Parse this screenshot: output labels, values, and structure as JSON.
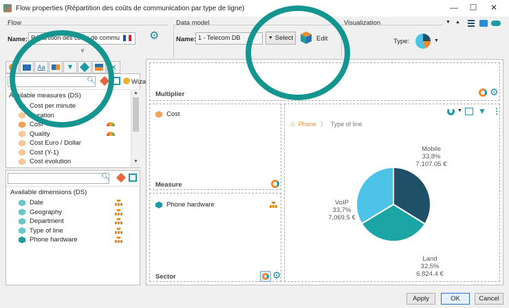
{
  "window": {
    "title": "Flow properties (Répartition des coûts de communication par type de ligne)",
    "minimize": "—",
    "maximize": "☐",
    "close": "✕"
  },
  "flow": {
    "group_label": "Flow",
    "name_label": "Name:",
    "name_value": "Répartition des coûts de commu",
    "collapse_glyph": "»"
  },
  "data_model": {
    "group_label": "Data model",
    "name_label": "Name:",
    "name_value": "1 - Telecom DB",
    "select_label": "Select",
    "edit_label": "Edit"
  },
  "visualization": {
    "group_label": "Visualization",
    "type_label": "Type:"
  },
  "measures": {
    "wizard_label": "Wizard",
    "header": "Available measures (DS)",
    "items": [
      {
        "label": "Cost per minute",
        "icon": "hex-orange-light"
      },
      {
        "label": "Duration",
        "icon": "hex-orange-light"
      },
      {
        "label": "Cost",
        "icon": "hex-orange",
        "badge": true
      },
      {
        "label": "Quality",
        "icon": "hex-orange-light",
        "badge": true
      },
      {
        "label": "Cost Euro / Dollar",
        "icon": "hex-orange-light"
      },
      {
        "label": "Cost (Y-1)",
        "icon": "hex-orange-light"
      },
      {
        "label": "Cost evolution",
        "icon": "hex-orange-light"
      }
    ]
  },
  "dimensions": {
    "header": "Available dimensions (DS)",
    "items": [
      {
        "label": "Date",
        "icon": "hex-teal-light"
      },
      {
        "label": "Geography",
        "icon": "hex-teal-light"
      },
      {
        "label": "Department",
        "icon": "hex-teal-light"
      },
      {
        "label": "Type of line",
        "icon": "hex-teal-light"
      },
      {
        "label": "Phone hardware",
        "icon": "hex-teal"
      }
    ]
  },
  "design": {
    "multiplier_label": "Multiplier",
    "measure_label": "Measure",
    "measure_item": "Cost",
    "sector_label": "Sector",
    "sector_item": "Phone hardware",
    "breadcrumb_root": "Phone",
    "breadcrumb_sep": "〉",
    "breadcrumb_leaf": "Type of line"
  },
  "chart_data": {
    "type": "pie",
    "slices": [
      {
        "name": "Mobile",
        "percent": "33,8%",
        "value": 7107.05,
        "value_label": "7,107.05 €",
        "color": "#1f5068"
      },
      {
        "name": "Land",
        "percent": "32,5%",
        "value": 6824.4,
        "value_label": "6,824.4 €",
        "color": "#1ba5a5"
      },
      {
        "name": "VoIP",
        "percent": "33,7%",
        "value": 7069.5,
        "value_label": "7,069.5 €",
        "color": "#4dc3e8"
      }
    ]
  },
  "footer": {
    "apply_label": "Apply",
    "ok_label": "OK",
    "cancel_label": "Cancel"
  },
  "colors": {
    "accent": "#14958f",
    "orange": "#f0a15a",
    "teal": "#1e9aa3"
  }
}
